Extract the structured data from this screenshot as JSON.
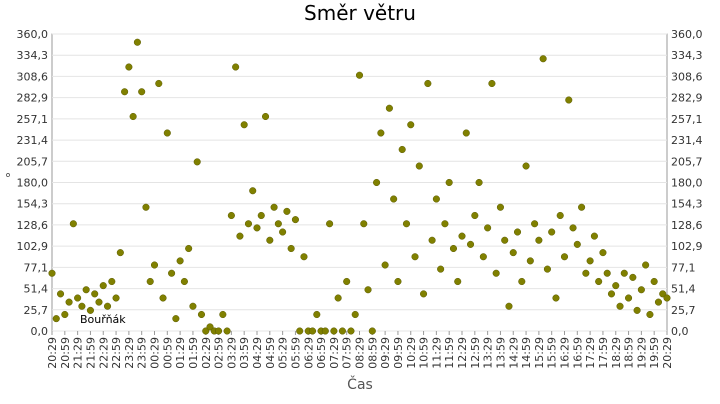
{
  "chart_data": {
    "type": "scatter",
    "title": "Směr větru",
    "x_label": "Čas",
    "y_label": "°",
    "legend": "bottom-left",
    "grid": true,
    "yticks": [
      {
        "value": 0,
        "label": "0,0"
      },
      {
        "value": 25.7,
        "label": "25,7"
      },
      {
        "value": 51.4,
        "label": "51,4"
      },
      {
        "value": 77.1,
        "label": "77,1"
      },
      {
        "value": 102.9,
        "label": "102,9"
      },
      {
        "value": 128.6,
        "label": "128,6"
      },
      {
        "value": 154.3,
        "label": "154,3"
      },
      {
        "value": 180,
        "label": "180,0"
      },
      {
        "value": 205.7,
        "label": "205,7"
      },
      {
        "value": 231.4,
        "label": "231,4"
      },
      {
        "value": 257.1,
        "label": "257,1"
      },
      {
        "value": 282.9,
        "label": "282,9"
      },
      {
        "value": 308.6,
        "label": "308,6"
      },
      {
        "value": 334.3,
        "label": "334,3"
      },
      {
        "value": 360,
        "label": "360,0"
      }
    ],
    "ylim": [
      0,
      360
    ],
    "xticks": [
      "20:29",
      "20:59",
      "21:29",
      "21:59",
      "22:29",
      "22:59",
      "23:29",
      "23:59",
      "00:29",
      "00:59",
      "01:29",
      "01:59",
      "02:29",
      "02:59",
      "03:29",
      "03:59",
      "04:29",
      "04:59",
      "05:29",
      "05:59",
      "06:29",
      "06:59",
      "07:29",
      "07:59",
      "08:29",
      "08:59",
      "09:29",
      "09:59",
      "10:29",
      "10:59",
      "11:29",
      "11:59",
      "12:29",
      "12:59",
      "13:29",
      "13:59",
      "14:29",
      "14:59",
      "15:29",
      "15:59",
      "16:29",
      "16:59",
      "17:29",
      "17:59",
      "18:29",
      "18:59",
      "19:29",
      "19:59",
      "20:29"
    ],
    "x": [
      "20:29",
      "20:39",
      "20:49",
      "20:59",
      "21:09",
      "21:19",
      "21:29",
      "21:39",
      "21:49",
      "21:59",
      "22:09",
      "22:19",
      "22:29",
      "22:39",
      "22:49",
      "22:59",
      "23:09",
      "23:19",
      "23:29",
      "23:39",
      "23:49",
      "23:59",
      "00:09",
      "00:19",
      "00:29",
      "00:39",
      "00:49",
      "00:59",
      "01:09",
      "01:19",
      "01:29",
      "01:39",
      "01:49",
      "01:59",
      "02:09",
      "02:19",
      "02:29",
      "02:39",
      "02:49",
      "02:59",
      "03:09",
      "03:19",
      "03:29",
      "03:39",
      "03:49",
      "03:59",
      "04:09",
      "04:19",
      "04:29",
      "04:39",
      "04:49",
      "04:59",
      "05:09",
      "05:19",
      "05:29",
      "05:39",
      "05:49",
      "05:59",
      "06:09",
      "06:19",
      "06:29",
      "06:39",
      "06:49",
      "06:59",
      "07:09",
      "07:19",
      "07:29",
      "07:39",
      "07:49",
      "07:59",
      "08:09",
      "08:19",
      "08:29",
      "08:39",
      "08:49",
      "08:59",
      "09:09",
      "09:19",
      "09:29",
      "09:39",
      "09:49",
      "09:59",
      "10:09",
      "10:19",
      "10:29",
      "10:39",
      "10:49",
      "10:59",
      "11:09",
      "11:19",
      "11:29",
      "11:39",
      "11:49",
      "11:59",
      "12:09",
      "12:19",
      "12:29",
      "12:39",
      "12:49",
      "12:59",
      "13:09",
      "13:19",
      "13:29",
      "13:39",
      "13:49",
      "13:59",
      "14:09",
      "14:19",
      "14:29",
      "14:39",
      "14:49",
      "14:59",
      "15:09",
      "15:19",
      "15:29",
      "15:39",
      "15:49",
      "15:59",
      "16:09",
      "16:19",
      "16:29",
      "16:39",
      "16:49",
      "16:59",
      "17:09",
      "17:19",
      "17:29",
      "17:39",
      "17:49",
      "17:59",
      "18:09",
      "18:19",
      "18:29",
      "18:39",
      "18:49",
      "18:59",
      "19:09",
      "19:19",
      "19:29",
      "19:39",
      "19:49",
      "19:59",
      "20:09",
      "20:19",
      "20:29"
    ],
    "series": [
      {
        "name": "Bouřňák",
        "color": "#808000",
        "values": [
          70,
          15,
          45,
          20,
          35,
          130,
          40,
          30,
          50,
          25,
          45,
          35,
          55,
          30,
          60,
          40,
          95,
          290,
          320,
          260,
          350,
          290,
          150,
          60,
          80,
          300,
          40,
          240,
          70,
          15,
          85,
          60,
          100,
          30,
          205,
          20,
          0,
          5,
          0,
          0,
          20,
          0,
          140,
          320,
          115,
          250,
          130,
          170,
          125,
          140,
          260,
          110,
          150,
          130,
          120,
          145,
          100,
          135,
          0,
          90,
          0,
          0,
          20,
          0,
          0,
          130,
          0,
          40,
          0,
          60,
          0,
          20,
          310,
          130,
          50,
          0,
          180,
          240,
          80,
          270,
          160,
          60,
          220,
          130,
          250,
          90,
          200,
          45,
          300,
          110,
          160,
          75,
          130,
          180,
          100,
          60,
          115,
          240,
          105,
          140,
          180,
          90,
          125,
          300,
          70,
          150,
          110,
          30,
          95,
          120,
          60,
          200,
          85,
          130,
          110,
          330,
          75,
          120,
          40,
          140,
          90,
          280,
          125,
          105,
          150,
          70,
          85,
          115,
          60,
          95,
          70,
          45,
          55,
          30,
          70,
          40,
          65,
          25,
          50,
          80,
          20,
          60,
          35,
          45,
          40
        ]
      }
    ]
  }
}
